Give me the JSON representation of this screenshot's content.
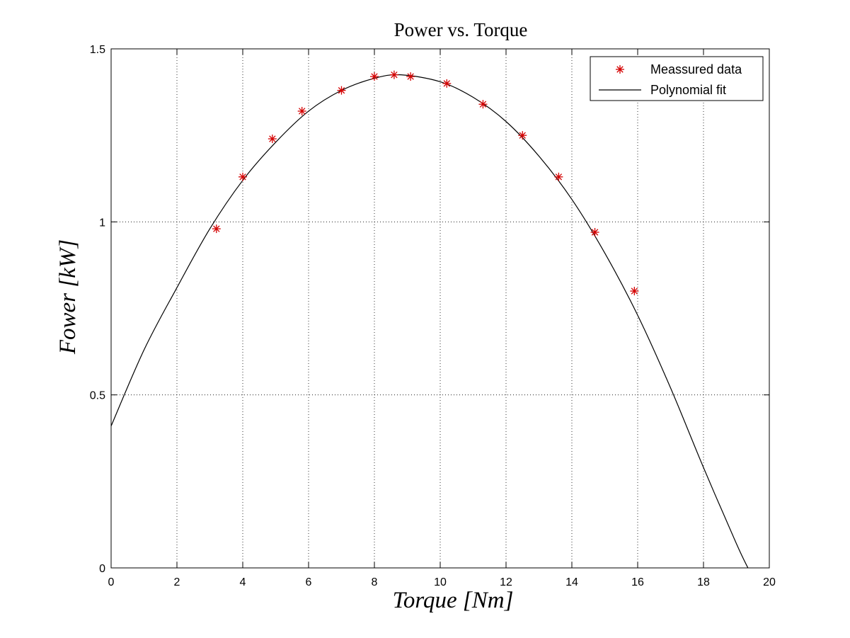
{
  "chart_data": {
    "type": "scatter",
    "title": "Power vs. Torque",
    "xlabel": "Torque [Nm]",
    "ylabel": "Fower [kW]",
    "xlim": [
      0,
      20
    ],
    "ylim": [
      0,
      1.5
    ],
    "xticks": [
      0,
      2,
      4,
      6,
      8,
      10,
      12,
      14,
      16,
      18,
      20
    ],
    "yticks": [
      0,
      0.5,
      1,
      1.5
    ],
    "xtick_labels": [
      "0",
      "2",
      "4",
      "6",
      "8",
      "10",
      "12",
      "14",
      "16",
      "18",
      "20"
    ],
    "ytick_labels": [
      "0",
      "0.5",
      "1",
      "1.5"
    ],
    "grid": true,
    "legend_position": "top-right",
    "series": [
      {
        "name": "Meassured data",
        "type": "scatter",
        "marker": "asterisk",
        "color": "#d40000",
        "x": [
          3.2,
          4.0,
          4.9,
          5.8,
          7.0,
          8.0,
          8.6,
          9.1,
          10.2,
          11.3,
          12.5,
          13.6,
          14.7,
          15.9
        ],
        "y": [
          0.98,
          1.13,
          1.24,
          1.32,
          1.38,
          1.42,
          1.425,
          1.42,
          1.4,
          1.34,
          1.25,
          1.13,
          0.97,
          0.8
        ]
      },
      {
        "name": "Polynomial fit",
        "type": "line",
        "color": "#000000",
        "x": [
          0,
          1,
          2,
          3,
          4,
          5,
          6,
          7,
          8,
          8.8,
          10,
          11,
          12,
          13,
          14,
          15,
          16,
          17,
          18,
          19,
          19.35
        ],
        "y": [
          0.41,
          0.63,
          0.81,
          0.98,
          1.12,
          1.23,
          1.32,
          1.38,
          1.415,
          1.425,
          1.405,
          1.36,
          1.29,
          1.19,
          1.065,
          0.91,
          0.73,
          0.52,
          0.29,
          0.07,
          0.0
        ]
      }
    ]
  }
}
